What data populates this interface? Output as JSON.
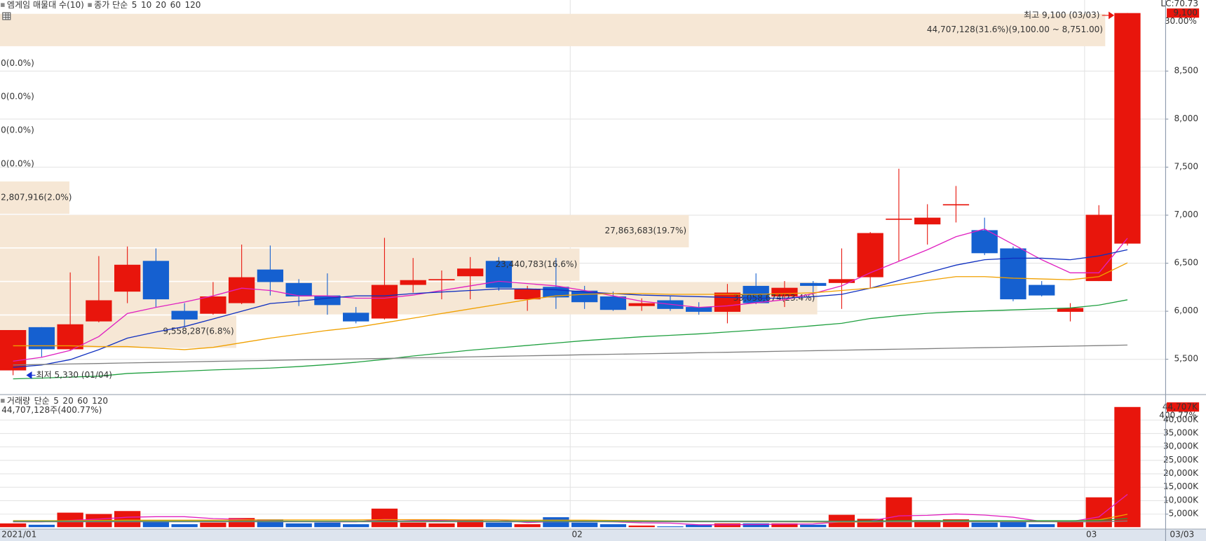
{
  "chart_data": [
    {
      "type": "candlestick",
      "title": "엠게임 매물대 수(10)",
      "legend_prefix": "종가 단순",
      "up_color": "#e8150c",
      "down_color": "#1560d0",
      "categories": [
        "2021/01",
        null,
        null,
        null,
        null,
        null,
        null,
        null,
        null,
        null,
        null,
        null,
        null,
        null,
        null,
        null,
        null,
        null,
        null,
        null,
        "02",
        null,
        null,
        null,
        null,
        null,
        null,
        null,
        null,
        null,
        null,
        null,
        null,
        null,
        null,
        null,
        null,
        null,
        "03",
        null
      ],
      "x_end_label": "03/03",
      "open": [
        5380,
        5830,
        5600,
        5890,
        6200,
        6520,
        6000,
        5970,
        6080,
        6430,
        6290,
        6160,
        5980,
        5920,
        6270,
        6320,
        6360,
        6520,
        6120,
        6250,
        6210,
        6150,
        6050,
        6110,
        6040,
        5990,
        6260,
        6150,
        6290,
        6290,
        6350,
        6950,
        6900,
        7100,
        6840,
        6650,
        6270,
        5990,
        6310,
        6700
      ],
      "high": [
        5800,
        5830,
        6400,
        6570,
        6670,
        6650,
        6080,
        6300,
        6690,
        6680,
        6330,
        6390,
        6040,
        6760,
        6550,
        6420,
        6560,
        6560,
        6260,
        6550,
        6260,
        6200,
        6130,
        6150,
        6090,
        6280,
        6390,
        6310,
        6310,
        6650,
        6820,
        7480,
        7110,
        7300,
        6970,
        6670,
        6310,
        6080,
        7100,
        9100
      ],
      "low": [
        5330,
        5520,
        5590,
        5880,
        6080,
        6040,
        5840,
        5960,
        6070,
        6160,
        6050,
        5960,
        5870,
        5910,
        6190,
        6120,
        6120,
        6210,
        6000,
        6020,
        6020,
        6000,
        6000,
        6000,
        5960,
        5870,
        6070,
        6040,
        6160,
        6020,
        6240,
        6520,
        6690,
        6920,
        6580,
        6100,
        6150,
        5890,
        6310,
        6680
      ],
      "close": [
        5800,
        5600,
        5860,
        6110,
        6480,
        6120,
        5910,
        6150,
        6350,
        6300,
        6150,
        6060,
        5890,
        6270,
        6320,
        6330,
        6440,
        6240,
        6230,
        6140,
        6090,
        6010,
        6080,
        6020,
        5990,
        6190,
        6080,
        6240,
        6260,
        6330,
        6810,
        6960,
        6970,
        7110,
        6600,
        6120,
        6160,
        6030,
        7000,
        9100
      ],
      "series": [
        {
          "name": "5",
          "color": "#e020c0",
          "values": [
            5476,
            5516,
            5588,
            5732,
            5972,
            6036,
            6092,
            6156,
            6236,
            6212,
            6156,
            6156,
            6132,
            6132,
            6164,
            6212,
            6260,
            6308,
            6284,
            6260,
            6212,
            6156,
            6100,
            6068,
            6036,
            6052,
            6084,
            6116,
            6180,
            6260,
            6396,
            6516,
            6636,
            6772,
            6852,
            6692,
            6532,
            6396,
            6396,
            6756
          ]
        },
        {
          "name": "10",
          "color": "#1030c0",
          "values": [
            5412,
            5436,
            5492,
            5596,
            5716,
            5780,
            5836,
            5916,
            5996,
            6076,
            6100,
            6132,
            6156,
            6156,
            6180,
            6196,
            6212,
            6228,
            6228,
            6220,
            6196,
            6180,
            6164,
            6156,
            6148,
            6140,
            6132,
            6132,
            6148,
            6172,
            6236,
            6316,
            6396,
            6476,
            6532,
            6548,
            6548,
            6532,
            6572,
            6636
          ]
        },
        {
          "name": "20",
          "color": "#f0a000",
          "values": [
            5636,
            5636,
            5636,
            5628,
            5628,
            5612,
            5596,
            5620,
            5668,
            5716,
            5756,
            5796,
            5828,
            5876,
            5924,
            5972,
            6020,
            6068,
            6116,
            6156,
            6172,
            6180,
            6180,
            6172,
            6172,
            6172,
            6172,
            6180,
            6188,
            6212,
            6236,
            6276,
            6316,
            6356,
            6356,
            6340,
            6332,
            6324,
            6356,
            6500
          ]
        },
        {
          "name": "60",
          "color": "#20a040",
          "values": [
            5292,
            5300,
            5310,
            5320,
            5348,
            5360,
            5372,
            5385,
            5395,
            5404,
            5420,
            5440,
            5465,
            5495,
            5530,
            5560,
            5590,
            5615,
            5640,
            5665,
            5690,
            5710,
            5730,
            5745,
            5760,
            5780,
            5800,
            5820,
            5845,
            5870,
            5920,
            5950,
            5975,
            5990,
            6000,
            6010,
            6020,
            6030,
            6060,
            6115
          ]
        },
        {
          "name": "120",
          "color": "#808080",
          "values": [
            5436,
            5442,
            5447,
            5452,
            5458,
            5463,
            5468,
            5474,
            5479,
            5484,
            5490,
            5495,
            5500,
            5505,
            5511,
            5516,
            5521,
            5527,
            5532,
            5537,
            5543,
            5548,
            5553,
            5558,
            5564,
            5569,
            5574,
            5580,
            5585,
            5590,
            5596,
            5601,
            5606,
            5612,
            5617,
            5622,
            5628,
            5633,
            5638,
            5644
          ]
        }
      ],
      "volume_profile": {
        "color": "#f6e7d5",
        "band_edges": [
          9100,
          8751,
          8402,
          8053,
          7704,
          7355,
          7006,
          6657,
          6308,
          5959,
          5610
        ],
        "volumes": [
          44707128,
          0,
          0,
          0,
          0,
          2807916,
          27863683,
          23440783,
          33058674,
          9558287
        ],
        "value_labels": [
          "44,707,128(31.6%)(9,100.00 ~ 8,751.00)",
          "0(0.0%)",
          "0(0.0%)",
          "0(0.0%)",
          "0(0.0%)",
          "2,807,916(2.0%)",
          "27,863,683(19.7%)",
          "23,440,783(16.6%)",
          "33,058,674(23.4%)",
          "9,558,287(6.8%)"
        ]
      },
      "annotations": [
        {
          "text": "최고 9,100 (03/03)",
          "value": 9100,
          "color": "#e8150c"
        },
        {
          "text": "최저 5,330 (01/04)",
          "value": 5330,
          "color": "#1530d0"
        }
      ],
      "lc_label": "LC:70.73",
      "last_price_label": "9,100",
      "change_label": "30.00%",
      "ylim": [
        5132,
        9236
      ],
      "yticks": [
        {
          "value": 5500,
          "label": "5,500"
        },
        {
          "value": 6000,
          "label": "6,000"
        },
        {
          "value": 6500,
          "label": "6,500"
        },
        {
          "value": 7000,
          "label": "7,000"
        },
        {
          "value": 7500,
          "label": "7,500"
        },
        {
          "value": 8000,
          "label": "8,000"
        },
        {
          "value": 8500,
          "label": "8,500"
        }
      ],
      "grid": true
    },
    {
      "type": "bar",
      "title": "거래량",
      "title_color": "#20a0a0",
      "legend_prefix": "단순",
      "header_label": "44,707,128주(400.77%)",
      "last_label": "44,707K",
      "change_label": "400.77%",
      "values": [
        1400000,
        900000,
        5400000,
        4900000,
        6000000,
        2300000,
        1100000,
        1700000,
        3400000,
        2900000,
        1400000,
        1700000,
        1100000,
        6900000,
        1700000,
        1400000,
        2600000,
        1700000,
        1100000,
        3700000,
        1700000,
        1100000,
        600000,
        300000,
        900000,
        1400000,
        1400000,
        1400000,
        900000,
        4600000,
        3100000,
        11100000,
        2600000,
        2900000,
        1700000,
        2000000,
        1100000,
        2000000,
        11100000,
        44707128
      ],
      "series": [
        {
          "name": "5",
          "color": "#e020c0",
          "values": [
            2000000,
            2000000,
            2500000,
            3000000,
            3700000,
            3900000,
            3900000,
            3200000,
            2900000,
            2300000,
            2100000,
            2000000,
            2000000,
            2900000,
            2600000,
            2500000,
            2700000,
            2700000,
            1700000,
            2100000,
            2200000,
            2000000,
            1600000,
            1500000,
            900000,
            900000,
            1000000,
            1100000,
            1200000,
            2000000,
            2300000,
            4200000,
            4400000,
            4900000,
            4500000,
            3700000,
            2100000,
            2000000,
            3800000,
            12200000
          ]
        },
        {
          "name": "20",
          "color": "#f0a000",
          "values": [
            2400000,
            2400000,
            2400000,
            2500000,
            2600000,
            2600000,
            2600000,
            2600000,
            2700000,
            2700000,
            2700000,
            2700000,
            2700000,
            2800000,
            2800000,
            2800000,
            2700000,
            2700000,
            2600000,
            2600000,
            2600000,
            2500000,
            2400000,
            2300000,
            2200000,
            2100000,
            2000000,
            2000000,
            1900000,
            1900000,
            1900000,
            2200000,
            2200000,
            2300000,
            2300000,
            2300000,
            2300000,
            2300000,
            2700000,
            4800000
          ]
        },
        {
          "name": "60",
          "color": "#20a040",
          "values": [
            2200000,
            2200000,
            2200000,
            2200000,
            2200000,
            2200000,
            2200000,
            2200000,
            2200000,
            2200000,
            2200000,
            2200000,
            2200000,
            2200000,
            2200000,
            2200000,
            2200000,
            2200000,
            2200000,
            2200000,
            2200000,
            2200000,
            2200000,
            2200000,
            2200000,
            2200000,
            2200000,
            2200000,
            2200000,
            2200000,
            2300000,
            2400000,
            2400000,
            2400000,
            2400000,
            2400000,
            2400000,
            2400000,
            2500000,
            3200000
          ]
        },
        {
          "name": "120",
          "color": "#808080",
          "values": [
            2000000,
            2000000,
            2000000,
            2000000,
            2000000,
            2000000,
            2000000,
            2000000,
            2000000,
            2000000,
            2000000,
            2000000,
            2000000,
            2000000,
            2000000,
            2000000,
            2000000,
            2000000,
            2000000,
            2000000,
            2000000,
            2000000,
            2000000,
            2000000,
            2000000,
            2000000,
            2000000,
            2000000,
            2000000,
            2000000,
            2000000,
            2000000,
            2000000,
            2000000,
            2000000,
            2000000,
            2000000,
            2000000,
            2000000,
            2300000
          ]
        }
      ],
      "ylim": [
        0,
        48600000
      ],
      "yticks": [
        {
          "value": 5000000,
          "label": "5,000K"
        },
        {
          "value": 10000000,
          "label": "10,000K"
        },
        {
          "value": 15000000,
          "label": "15,000K"
        },
        {
          "value": 20000000,
          "label": "20,000K"
        },
        {
          "value": 25000000,
          "label": "25,000K"
        },
        {
          "value": 30000000,
          "label": "30,000K"
        },
        {
          "value": 35000000,
          "label": "35,000K"
        },
        {
          "value": 40000000,
          "label": "40,000K"
        }
      ],
      "grid": true
    }
  ]
}
